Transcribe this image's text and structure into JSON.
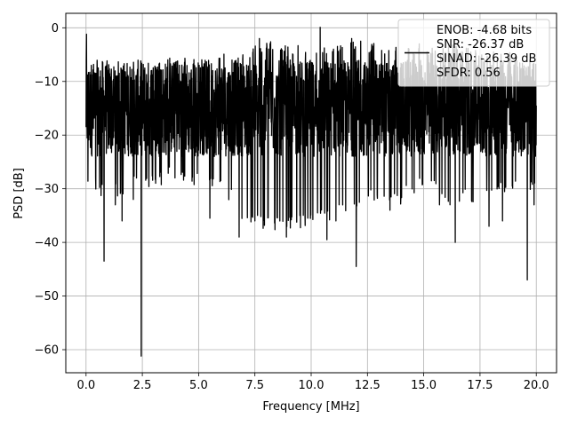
{
  "chart_data": {
    "type": "line",
    "xlabel": "Frequency [MHz]",
    "ylabel": "PSD [dB]",
    "xlim": [
      -0.9,
      20.9
    ],
    "ylim": [
      -64.3,
      2.7
    ],
    "x_ticks": [
      0.0,
      2.5,
      5.0,
      7.5,
      10.0,
      12.5,
      15.0,
      17.5,
      20.0
    ],
    "x_tick_labels": [
      "0.0",
      "2.5",
      "5.0",
      "7.5",
      "10.0",
      "12.5",
      "15.0",
      "17.5",
      "20.0"
    ],
    "y_ticks": [
      0,
      -10,
      -20,
      -30,
      -40,
      -50,
      -60
    ],
    "y_tick_labels": [
      "0",
      "−10",
      "−20",
      "−30",
      "−40",
      "−50",
      "−60"
    ],
    "grid": true,
    "legend_position": "top-right",
    "legend_lines": [
      "ENOB: -4.68 bits",
      "SNR: -26.37 dB",
      "SINAD: -26.39 dB",
      "SFDR: 0.56"
    ],
    "line_color": "#000000",
    "series": [
      {
        "x_range": [
          0,
          20
        ],
        "typical_upper": -6,
        "typical_lower": -24,
        "envelope_x": [
          0,
          0.05,
          0.2,
          0.5,
          1.0,
          2.0,
          3.0,
          4.0,
          5.0,
          6.0,
          7.0,
          8.0,
          9.0,
          10.0,
          11.0,
          12.0,
          13.0,
          14.0,
          15.0,
          16.0,
          17.0,
          18.0,
          19.0,
          20.0
        ],
        "envelope_max": [
          -10,
          -1.5,
          -6,
          -8,
          -8,
          -7,
          -7,
          -5,
          -6,
          -5,
          -4,
          -2.5,
          -3.5,
          -3,
          -3,
          -2.5,
          -3,
          -3,
          -4,
          -3,
          -3.5,
          -4.5,
          -4.5,
          -10
        ],
        "envelope_min": [
          -18,
          -30,
          -30,
          -31,
          -33,
          -30,
          -30,
          -28,
          -30,
          -30,
          -36,
          -38,
          -38,
          -37,
          -36,
          -35,
          -32,
          -33,
          -30,
          -33,
          -33,
          -32,
          -30,
          -32
        ],
        "deep_dips": [
          [
            0.8,
            -43.5
          ],
          [
            2.45,
            -61.2
          ],
          [
            6.8,
            -39
          ],
          [
            7.5,
            -36
          ],
          [
            8.9,
            -39
          ],
          [
            10.7,
            -39.5
          ],
          [
            12.0,
            -44.5
          ],
          [
            16.4,
            -40
          ],
          [
            17.9,
            -37
          ],
          [
            19.6,
            -47
          ],
          [
            19.9,
            -33
          ],
          [
            1.3,
            -33
          ],
          [
            1.6,
            -36
          ],
          [
            2.1,
            -32
          ],
          [
            5.5,
            -35.5
          ],
          [
            9.5,
            -35
          ],
          [
            11.1,
            -36
          ],
          [
            13.5,
            -34
          ],
          [
            15.7,
            -33
          ],
          [
            18.5,
            -36
          ]
        ],
        "peak_spikes": [
          [
            0.02,
            -1.2
          ],
          [
            10.4,
            0.1
          ],
          [
            7.7,
            -2
          ],
          [
            11.8,
            -2
          ],
          [
            12.2,
            -2.5
          ],
          [
            8.2,
            -2.6
          ],
          [
            14.8,
            -3
          ]
        ]
      }
    ]
  }
}
